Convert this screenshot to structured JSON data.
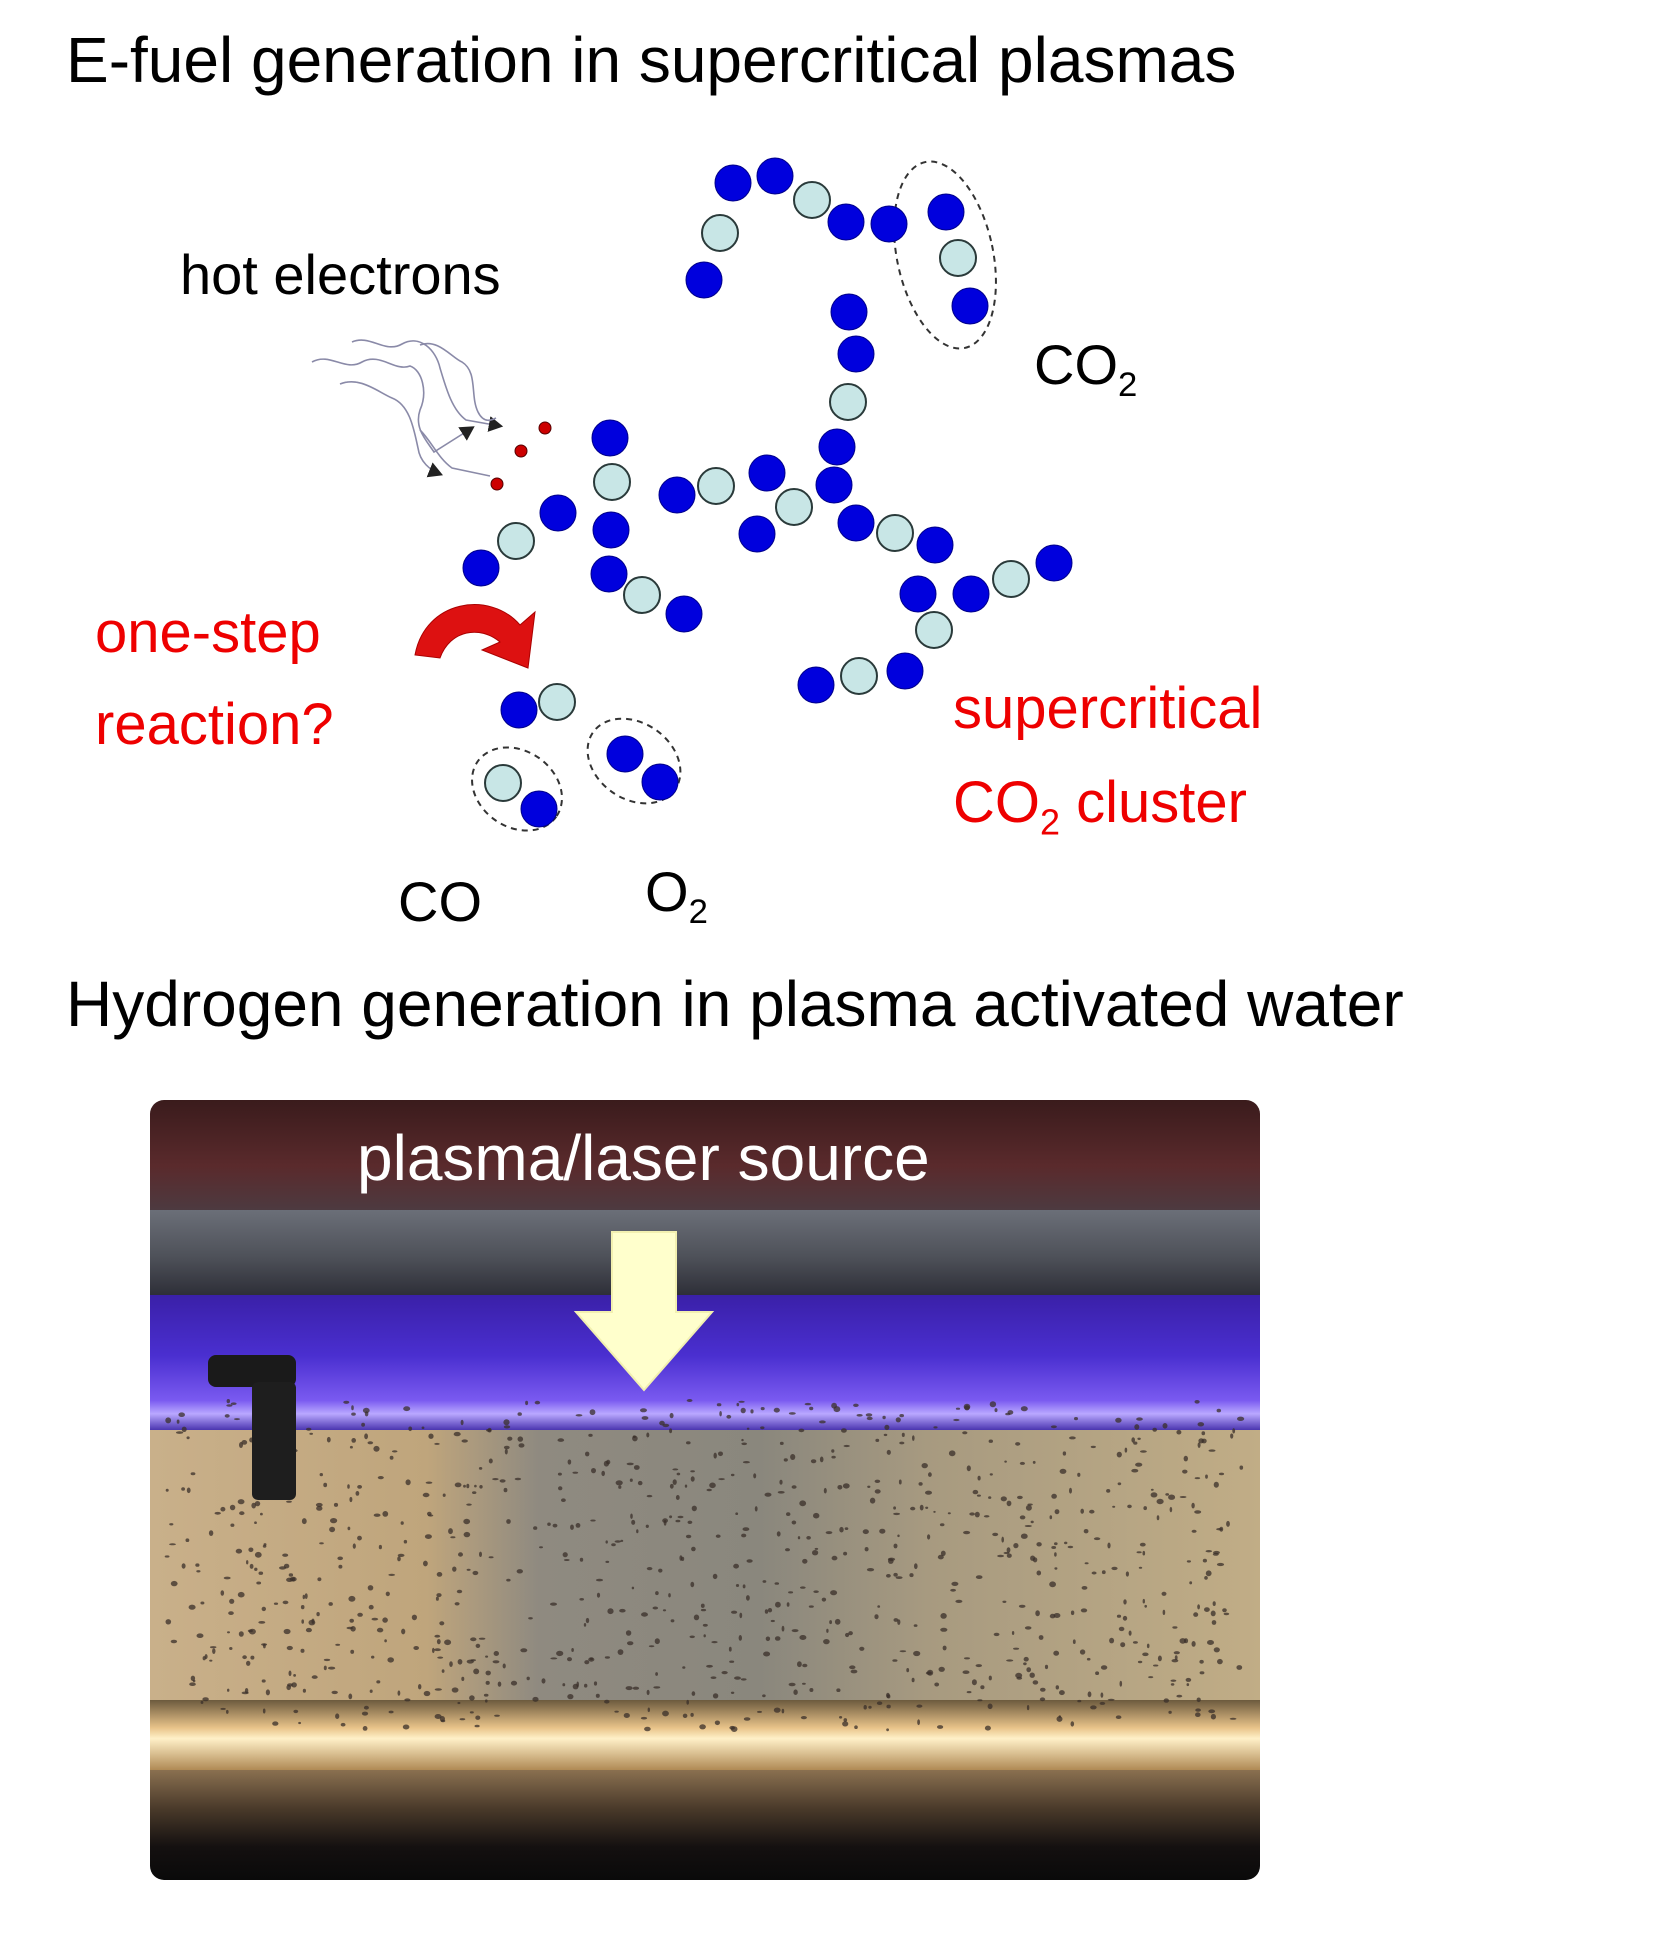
{
  "title_top": "E-fuel generation in supercritical plasmas",
  "labels": {
    "hot_electrons": "hot electrons",
    "co2": "CO",
    "co2_sub": "2",
    "one_step_line1": "one-step",
    "one_step_line2": "reaction?",
    "supercritical_line1": "supercritical",
    "supercritical_line2_a": "CO",
    "supercritical_line2_sub": "2",
    "supercritical_line2_b": " cluster",
    "co": "CO",
    "o2": "O",
    "o2_sub": "2"
  },
  "title_bottom": "Hydrogen generation in plasma activated water",
  "photo": {
    "label": "plasma/laser source"
  },
  "colors": {
    "oxygen_atom": "#0000dd",
    "carbon_atom": "#c8e6e6",
    "red_text": "#ee0000",
    "arrow_yellow": "#ffffcc"
  }
}
